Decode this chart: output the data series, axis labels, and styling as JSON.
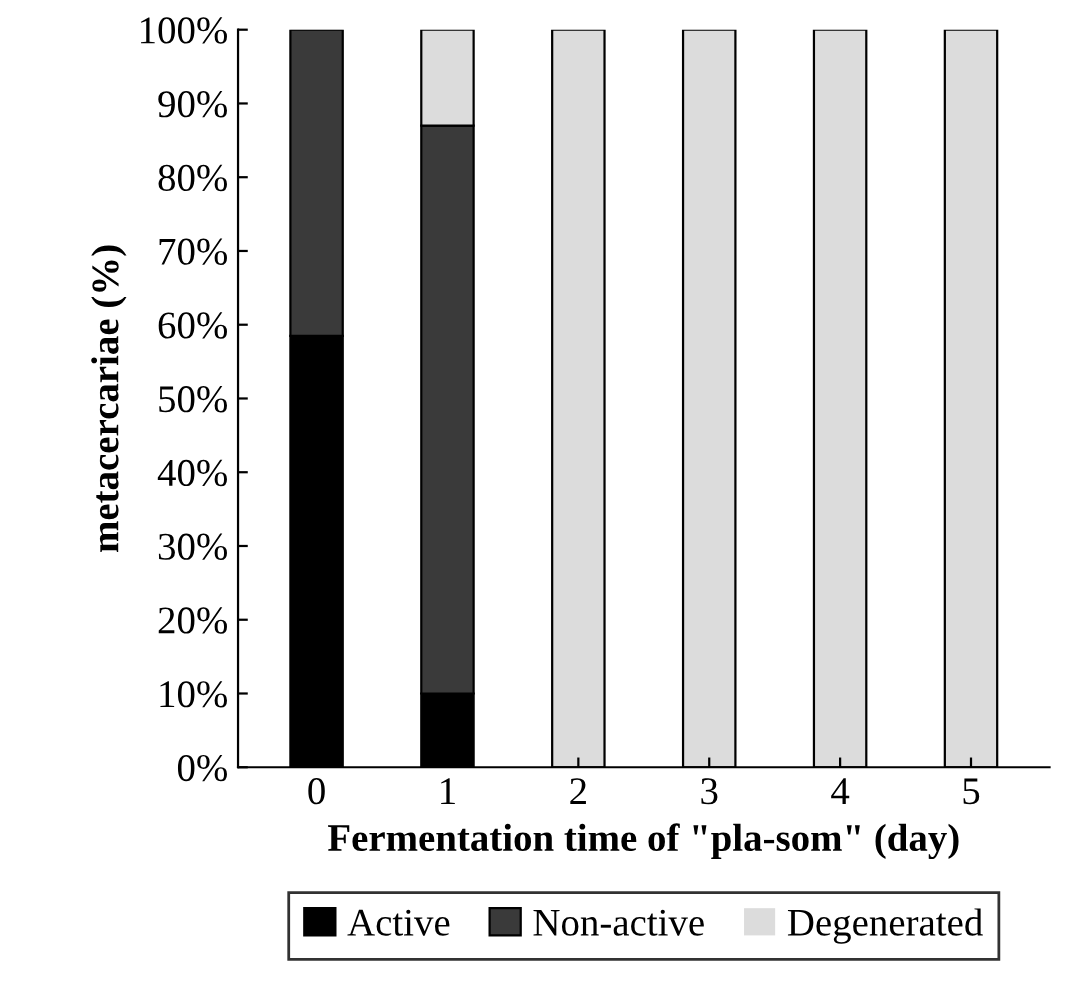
{
  "chart_data": {
    "type": "bar",
    "stacked": true,
    "xlabel": "Fermentation time of \"pla-som\" (day)",
    "ylabel": "metacercariae (%)",
    "categories": [
      "0",
      "1",
      "2",
      "3",
      "4",
      "5"
    ],
    "series": [
      {
        "name": "Active",
        "color": "#000000",
        "values": [
          58.5,
          10,
          0,
          0,
          0,
          0
        ]
      },
      {
        "name": "Non-active",
        "color": "#3a3a3a",
        "values": [
          41.5,
          77,
          0,
          0,
          0,
          0
        ]
      },
      {
        "name": "Degenerated",
        "color": "#dcdcdc",
        "values": [
          0,
          13,
          100,
          100,
          100,
          100
        ]
      }
    ],
    "ylim": [
      0,
      100
    ],
    "yticks": [
      {
        "value": 0,
        "label": "0%"
      },
      {
        "value": 10,
        "label": "10%"
      },
      {
        "value": 20,
        "label": "20%"
      },
      {
        "value": 30,
        "label": "30%"
      },
      {
        "value": 40,
        "label": "40%"
      },
      {
        "value": 50,
        "label": "50%"
      },
      {
        "value": 60,
        "label": "60%"
      },
      {
        "value": 70,
        "label": "70%"
      },
      {
        "value": 80,
        "label": "80%"
      },
      {
        "value": 90,
        "label": "90%"
      },
      {
        "value": 100,
        "label": "100%"
      }
    ],
    "grid": false,
    "legend": "bottom"
  }
}
